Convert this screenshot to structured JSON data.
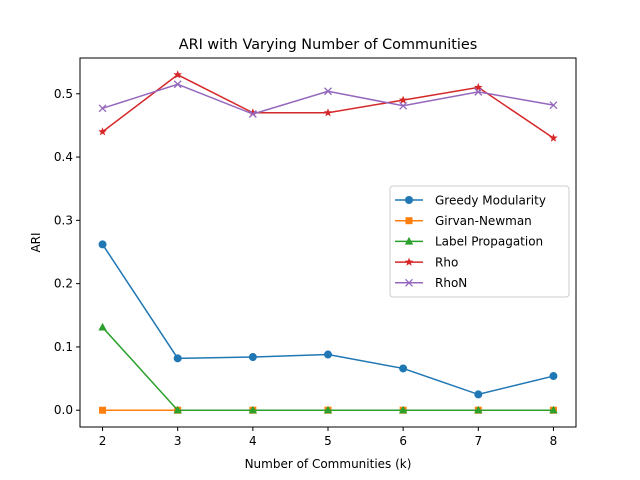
{
  "chart_data": {
    "type": "line",
    "title": "ARI with Varying Number of Communities",
    "xlabel": "Number of Communities (k)",
    "ylabel": "ARI",
    "x": [
      2,
      3,
      4,
      5,
      6,
      7,
      8
    ],
    "xlim": [
      1.7,
      8.3
    ],
    "ylim": [
      -0.0265,
      0.5565
    ],
    "xticks": [
      "2",
      "3",
      "4",
      "5",
      "6",
      "7",
      "8"
    ],
    "yticks": [
      {
        "value": 0.0,
        "label": "0.0"
      },
      {
        "value": 0.1,
        "label": "0.1"
      },
      {
        "value": 0.2,
        "label": "0.2"
      },
      {
        "value": 0.3,
        "label": "0.3"
      },
      {
        "value": 0.4,
        "label": "0.4"
      },
      {
        "value": 0.5,
        "label": "0.5"
      }
    ],
    "grid": false,
    "legend_position": "center-right",
    "series": [
      {
        "name": "Greedy Modularity",
        "color": "#1f77b4",
        "marker": "circle",
        "values": [
          0.262,
          0.082,
          0.084,
          0.088,
          0.066,
          0.025,
          0.054
        ]
      },
      {
        "name": "Girvan-Newman",
        "color": "#ff7f0e",
        "marker": "square",
        "values": [
          0.0,
          0.0,
          0.0,
          0.0,
          0.0,
          0.0,
          0.0
        ]
      },
      {
        "name": "Label Propagation",
        "color": "#2ca02c",
        "marker": "triangle",
        "values": [
          0.131,
          0.0,
          0.0,
          0.0,
          0.0,
          0.0,
          0.0
        ]
      },
      {
        "name": "Rho",
        "color": "#d62728",
        "marker": "star",
        "values": [
          0.44,
          0.53,
          0.47,
          0.47,
          0.49,
          0.51,
          0.43
        ]
      },
      {
        "name": "RhoN",
        "color": "#9467bd",
        "marker": "x",
        "values": [
          0.477,
          0.515,
          0.468,
          0.504,
          0.481,
          0.503,
          0.482
        ]
      }
    ]
  }
}
